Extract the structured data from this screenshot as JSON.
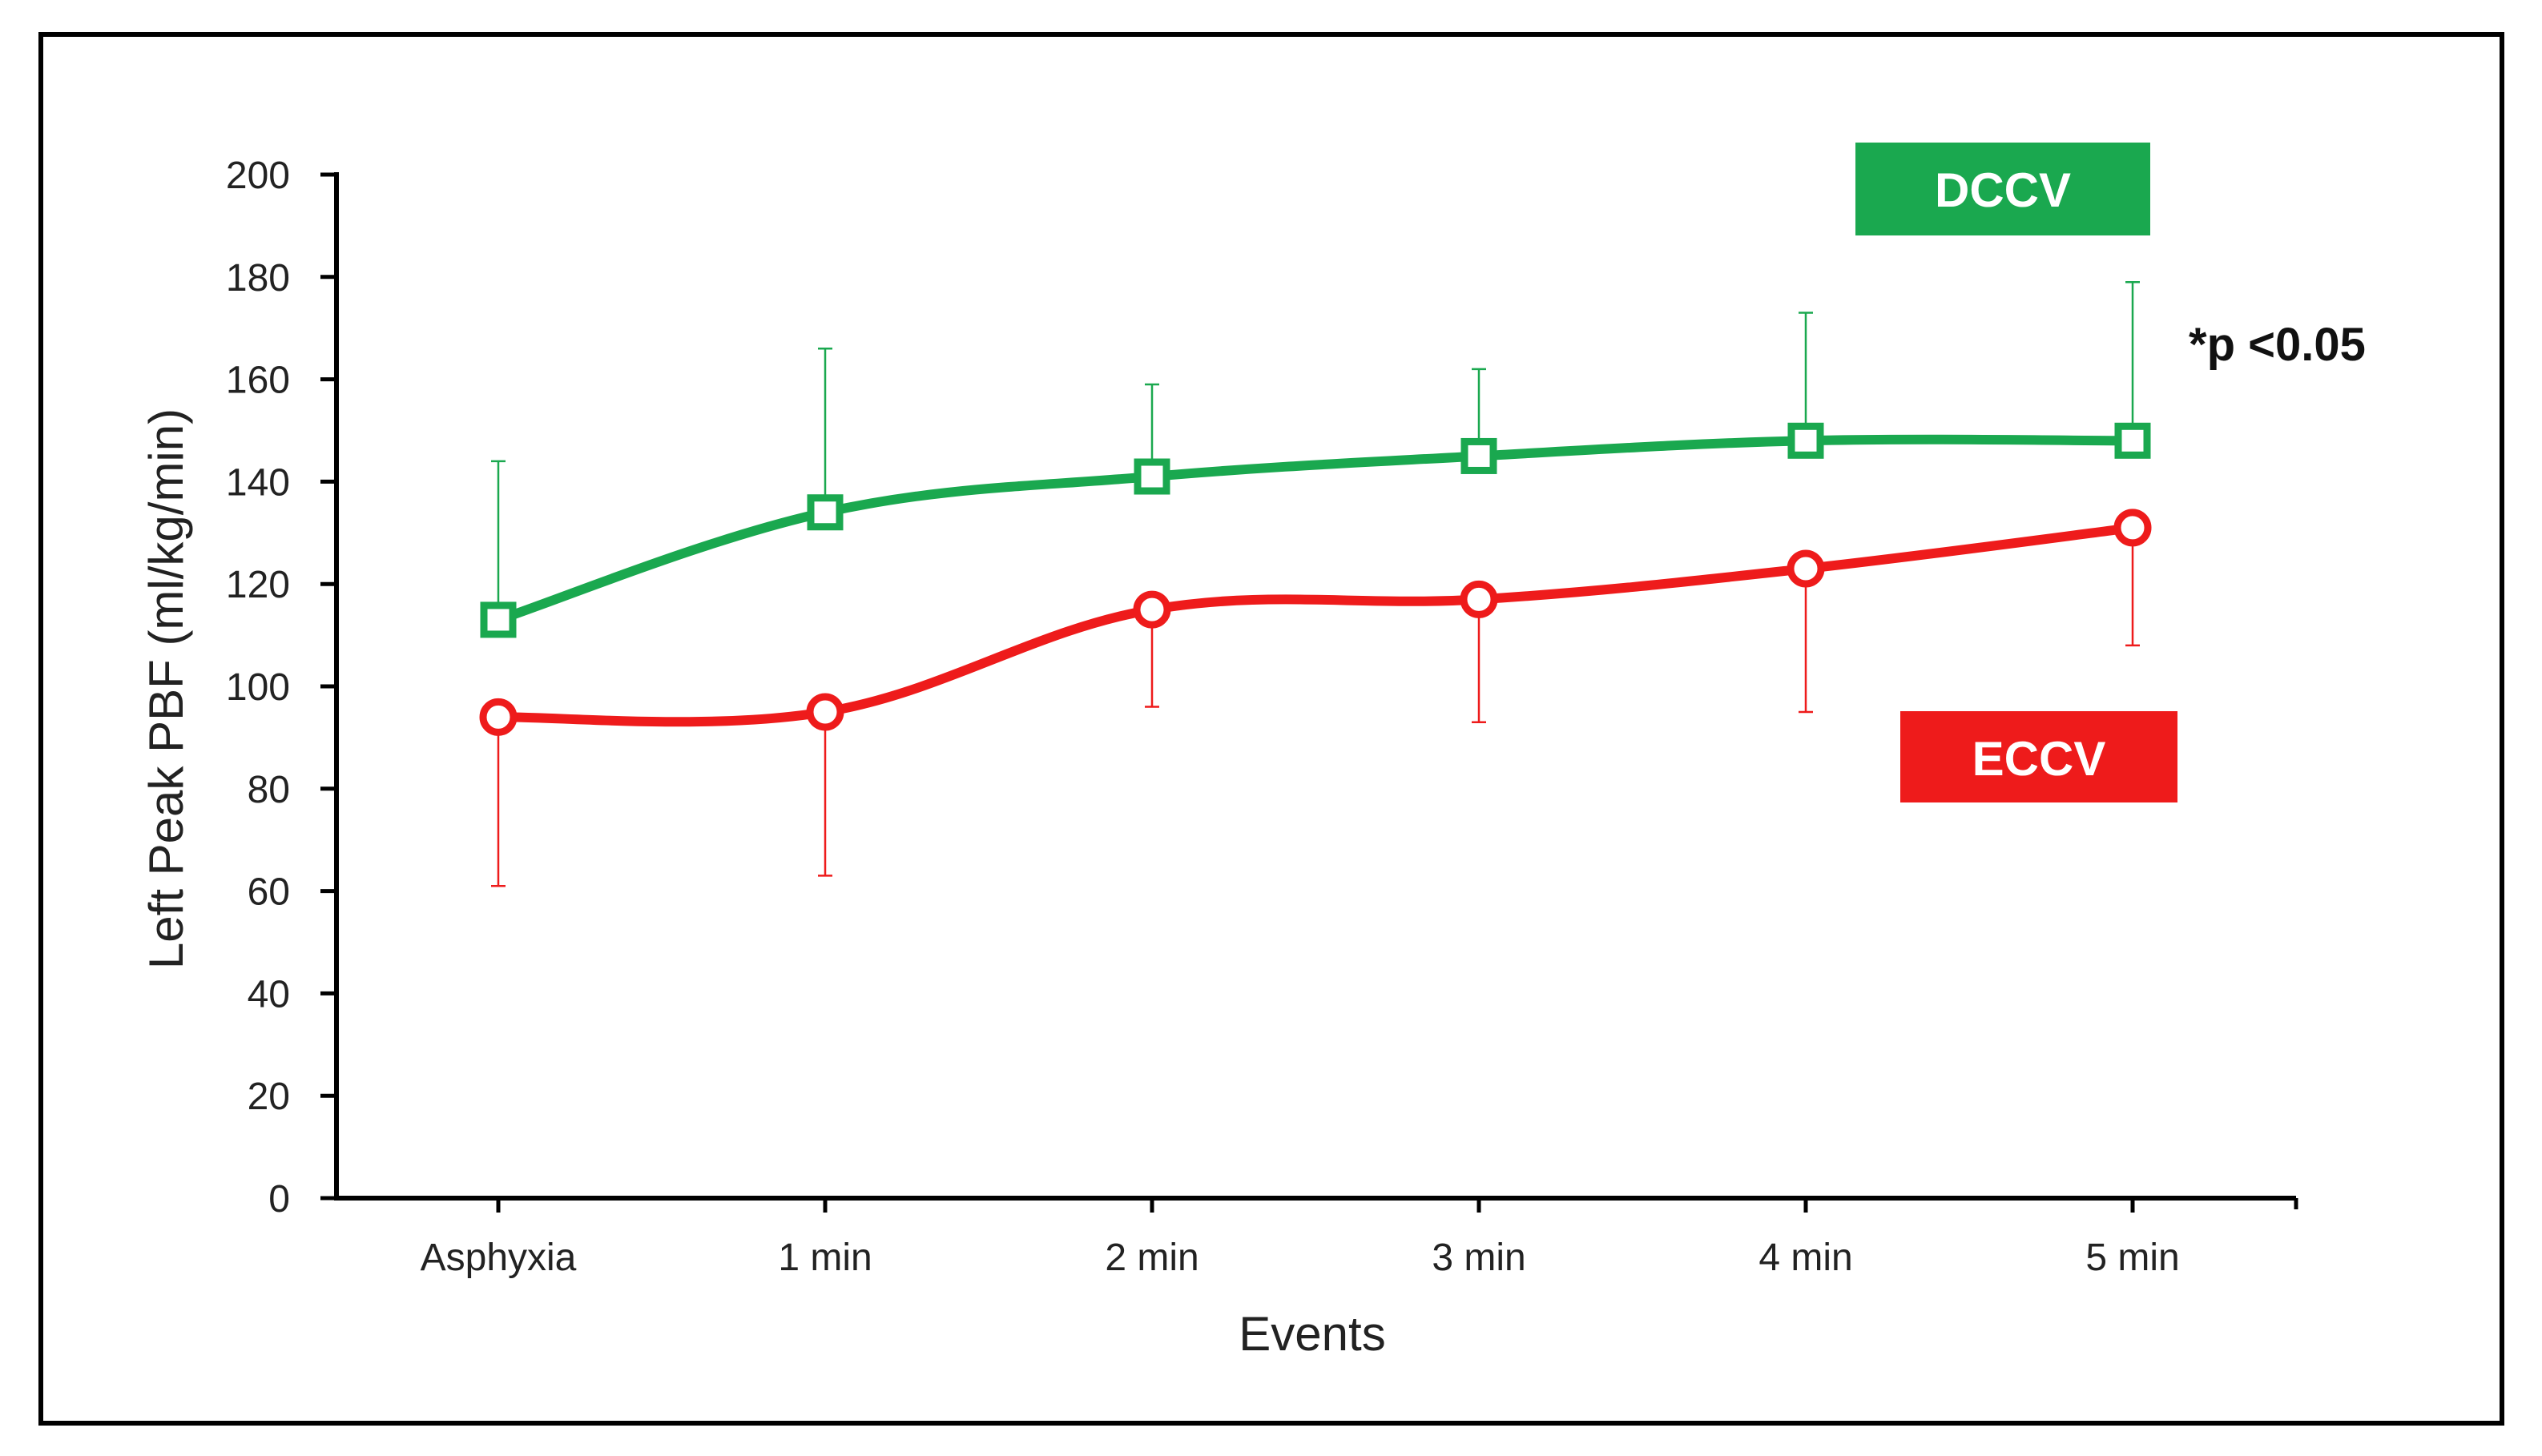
{
  "chart_data": {
    "type": "line",
    "title": "",
    "xlabel": "Events",
    "ylabel": "Left Peak PBF (ml/kg/min)",
    "ylim": [
      0,
      200
    ],
    "yticks": [
      0,
      20,
      40,
      60,
      80,
      100,
      120,
      140,
      160,
      180,
      200
    ],
    "categories": [
      "Asphyxia",
      "1 min",
      "2 min",
      "3 min",
      "4 min",
      "5 min"
    ],
    "grid": false,
    "series": [
      {
        "name": "DCCV",
        "color": "#1aa84f",
        "marker": "square",
        "error_direction": "up",
        "values": [
          113,
          134,
          141,
          145,
          148,
          148
        ],
        "error_ends": [
          144,
          166,
          159,
          162,
          173,
          179
        ]
      },
      {
        "name": "ECCV",
        "color": "#ee1b1b",
        "marker": "circle",
        "error_direction": "down",
        "values": [
          94,
          95,
          115,
          117,
          123,
          131
        ],
        "error_ends": [
          61,
          63,
          96,
          93,
          95,
          108
        ]
      }
    ],
    "annotation": "*p <0.05"
  }
}
